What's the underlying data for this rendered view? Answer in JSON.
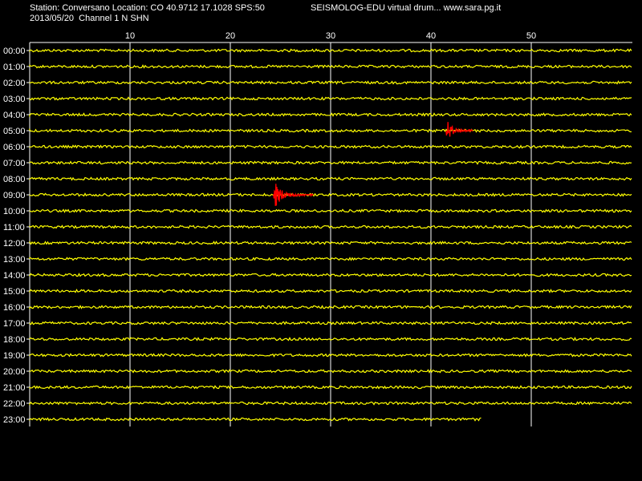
{
  "header": {
    "station_line": "Station: Conversano Location: CO 40.9712 17.1028 SPS:50",
    "date_line": "2013/05/20  Channel 1 N SHN",
    "program_line": "SEISMOLOG-EDU virtual drum... www.sara.pg.it"
  },
  "chart_data": {
    "type": "line",
    "x_ticks": [
      "10",
      "20",
      "30",
      "40",
      "50"
    ],
    "xlim": [
      0,
      60
    ],
    "grid": true,
    "row_labels": [
      "00:00",
      "01:00",
      "02:00",
      "03:00",
      "04:00",
      "05:00",
      "06:00",
      "07:00",
      "08:00",
      "09:00",
      "10:00",
      "11:00",
      "12:00",
      "13:00",
      "14:00",
      "15:00",
      "16:00",
      "17:00",
      "18:00",
      "19:00",
      "20:00",
      "21:00",
      "22:00",
      "23:00"
    ],
    "trace_color": "#ffff00",
    "event_color": "#ff0000",
    "background": "#000000",
    "last_trace_end_minute": 45,
    "events": [
      {
        "row": 5,
        "start": 41.5,
        "end": 44.2,
        "peak_amplitude": 17
      },
      {
        "row": 9,
        "start": 24.3,
        "end": 28.3,
        "peak_amplitude": 19
      }
    ]
  }
}
